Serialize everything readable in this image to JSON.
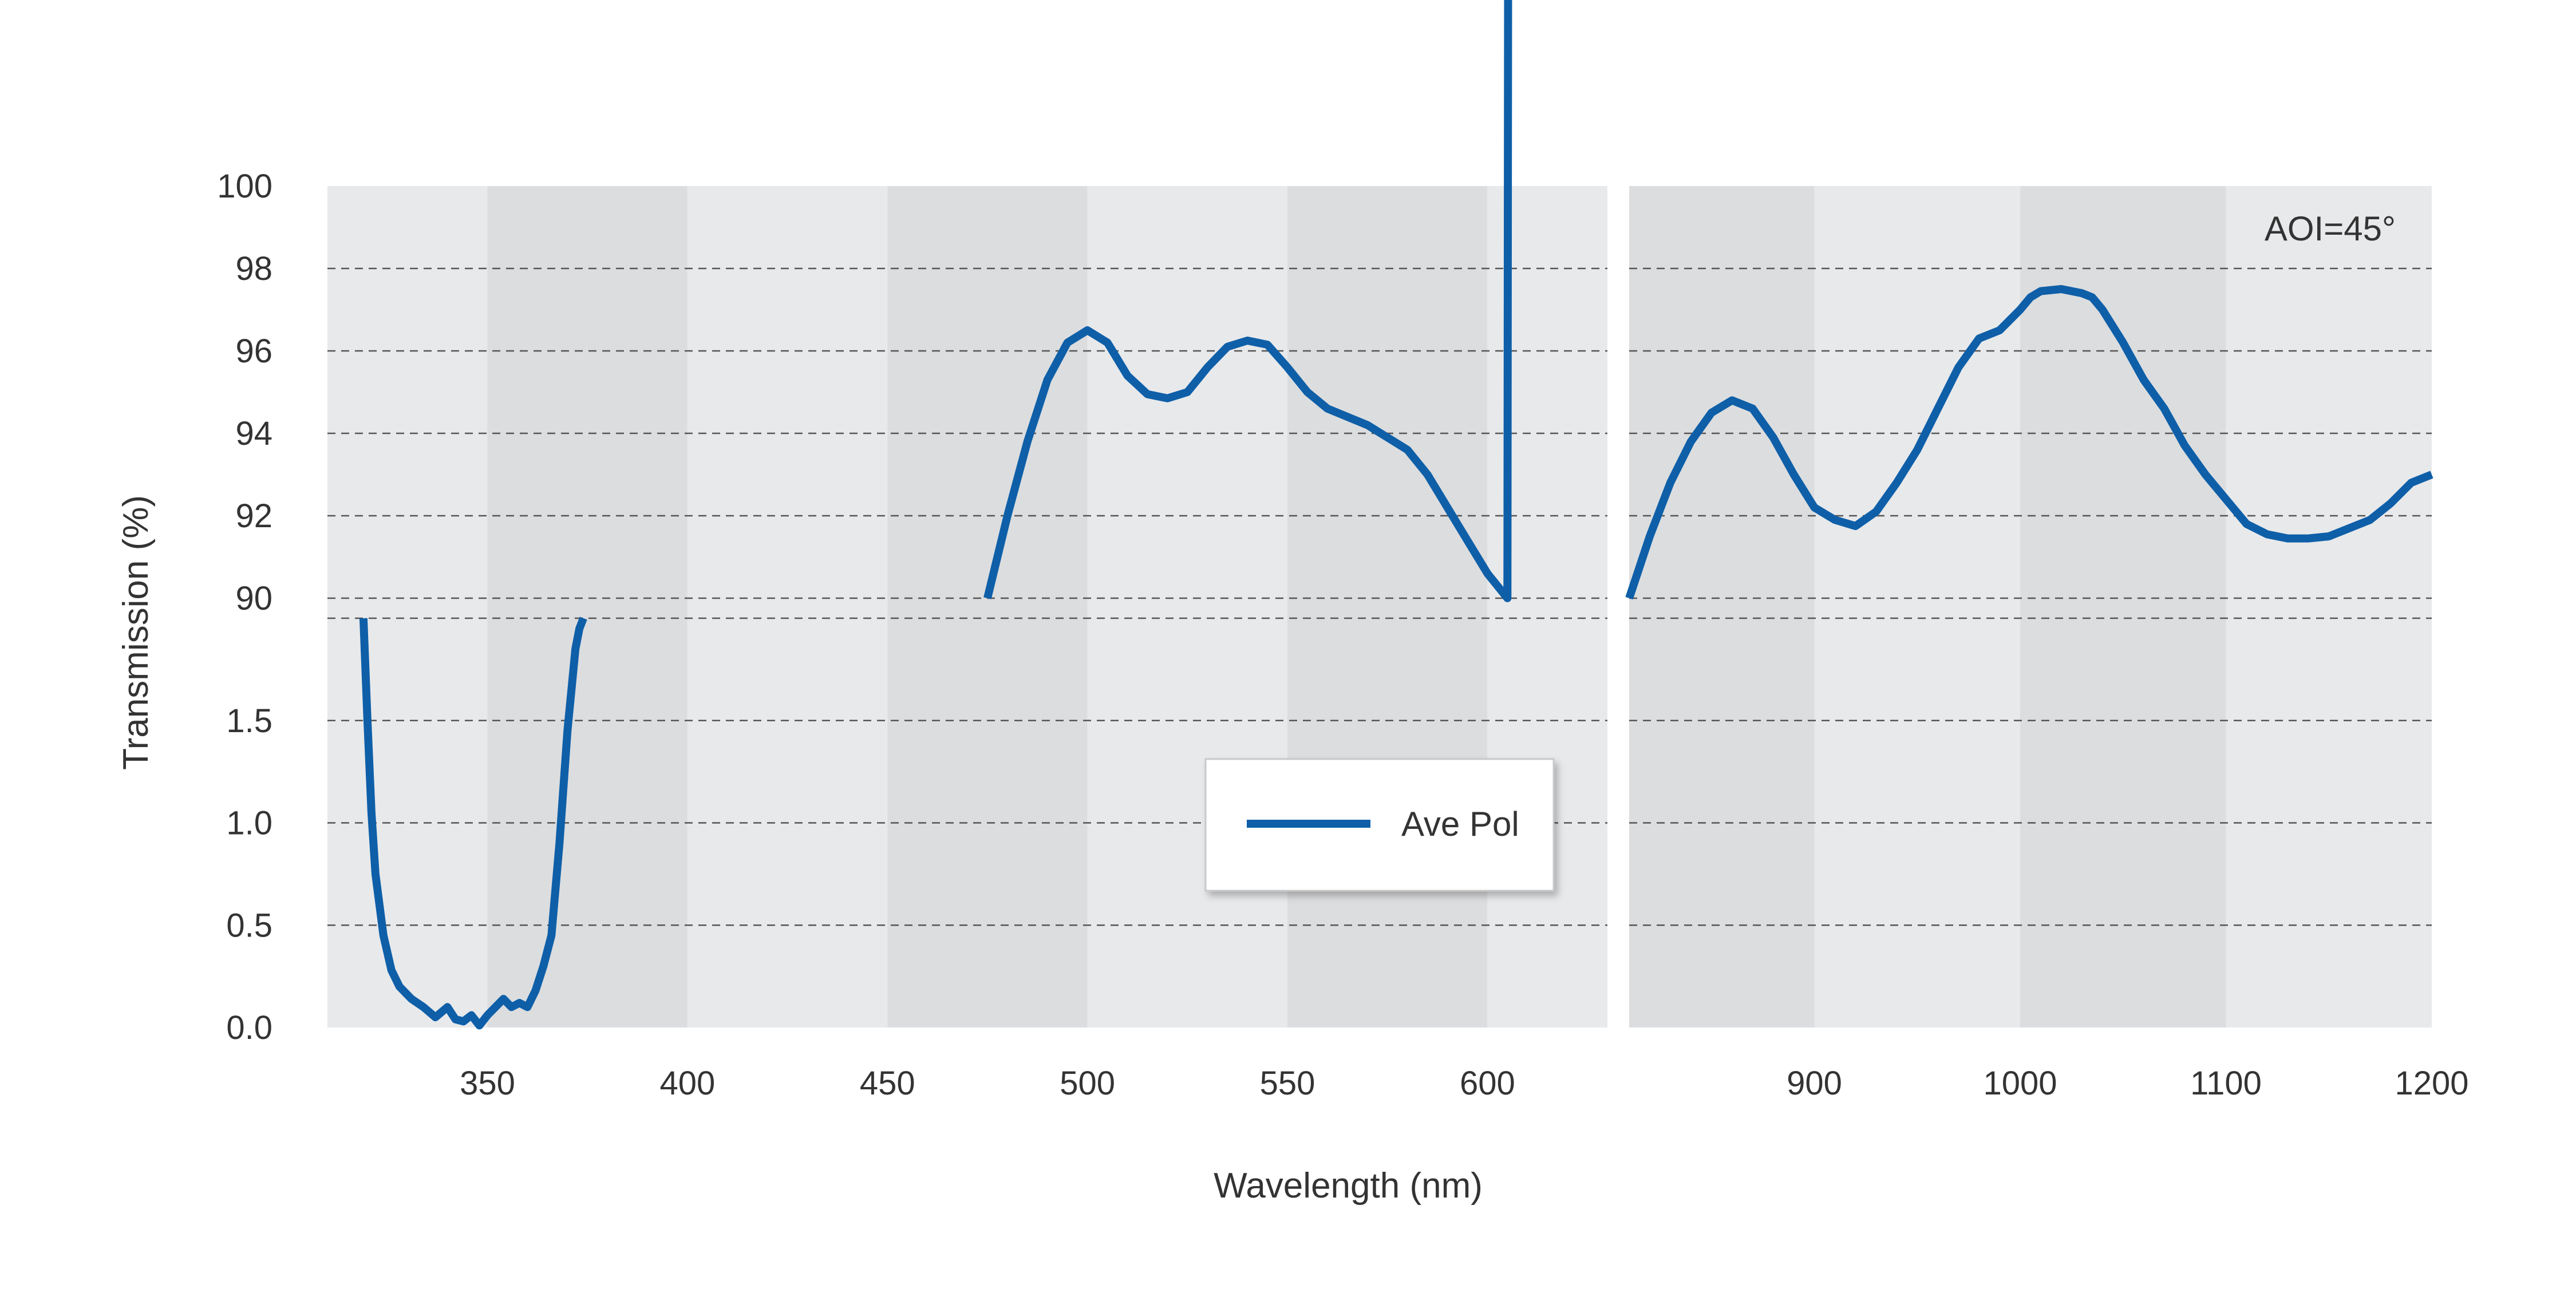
{
  "chart_data": {
    "type": "line",
    "xlabel": "Wavelength (nm)",
    "ylabel": "Transmission (%)",
    "annotation": "AOI=45°",
    "legend": {
      "position": "center",
      "entries": [
        "Ave Pol"
      ]
    },
    "grid": true,
    "colors": {
      "series": "#0e5fa8",
      "panel_light": "#e8e9eb",
      "panel_dark": "#dcdddf",
      "grid": "#555555"
    },
    "x_panels": [
      {
        "xlim": [
          310,
          630
        ],
        "ticks": [
          "350",
          "400",
          "450",
          "500",
          "550",
          "600"
        ],
        "tick_values": [
          350,
          400,
          450,
          500,
          550,
          600
        ]
      },
      {
        "xlim": [
          810,
          1200
        ],
        "ticks": [
          "900",
          "1000",
          "1100",
          "1200"
        ],
        "tick_values": [
          900,
          1000,
          1100,
          1200
        ]
      }
    ],
    "y_segments": [
      {
        "ylim": [
          0.0,
          2.0
        ],
        "ticks": [
          "0.0",
          "0.5",
          "1.0",
          "1.5"
        ],
        "tick_values": [
          0.0,
          0.5,
          1.0,
          1.5
        ]
      },
      {
        "ylim": [
          90,
          100
        ],
        "ticks": [
          "90",
          "92",
          "94",
          "96",
          "98",
          "100"
        ],
        "tick_values": [
          90,
          92,
          94,
          96,
          98,
          100
        ]
      }
    ],
    "series": [
      {
        "name": "Ave Pol",
        "segments": [
          {
            "x": [
              319,
              320,
              321,
              322,
              324,
              326,
              328,
              331,
              334,
              337,
              340,
              342,
              344,
              346,
              348,
              350,
              352,
              354,
              356,
              358,
              360,
              362,
              364,
              366,
              368,
              370,
              372,
              373,
              374
            ],
            "y": [
              2.0,
              1.5,
              1.05,
              0.75,
              0.45,
              0.28,
              0.2,
              0.14,
              0.1,
              0.05,
              0.1,
              0.04,
              0.03,
              0.06,
              0.01,
              0.06,
              0.1,
              0.14,
              0.1,
              0.12,
              0.1,
              0.18,
              0.3,
              0.45,
              0.9,
              1.45,
              1.85,
              1.95,
              2.0
            ]
          },
          {
            "x": [
              475,
              480,
              485,
              490,
              495,
              500,
              505,
              510,
              515,
              520,
              525,
              530,
              535,
              540,
              545,
              550,
              555,
              560,
              570,
              580,
              585,
              590,
              595,
              600,
              605,
              610
            ],
            "y": [
              90.0,
              92.0,
              93.8,
              95.3,
              96.2,
              96.5,
              96.2,
              95.4,
              94.95,
              94.85,
              95.0,
              95.6,
              96.1,
              96.25,
              96.15,
              95.6,
              95.0,
              94.6,
              94.2,
              93.6,
              93.0,
              92.2,
              91.4,
              90.6,
              90.0,
              89.95
            ]
          },
          {
            "x": [
              810,
              820,
              830,
              840,
              850,
              860,
              870,
              880,
              890,
              900,
              910,
              920,
              930,
              940,
              950,
              960,
              970,
              980,
              990,
              1000,
              1005,
              1010,
              1020,
              1030,
              1035,
              1040,
              1050,
              1060,
              1070,
              1080,
              1090,
              1100,
              1110,
              1120,
              1130,
              1140,
              1150,
              1160,
              1170,
              1180,
              1190,
              1200
            ],
            "y": [
              90.0,
              91.5,
              92.8,
              93.8,
              94.5,
              94.8,
              94.6,
              93.9,
              93.0,
              92.2,
              91.9,
              91.75,
              92.1,
              92.8,
              93.6,
              94.6,
              95.6,
              96.3,
              96.5,
              97.0,
              97.3,
              97.45,
              97.5,
              97.4,
              97.3,
              97.0,
              96.2,
              95.3,
              94.6,
              93.7,
              93.0,
              92.4,
              91.8,
              91.55,
              91.45,
              91.45,
              91.5,
              91.7,
              91.9,
              92.3,
              92.8,
              93.0
            ]
          }
        ]
      }
    ]
  }
}
